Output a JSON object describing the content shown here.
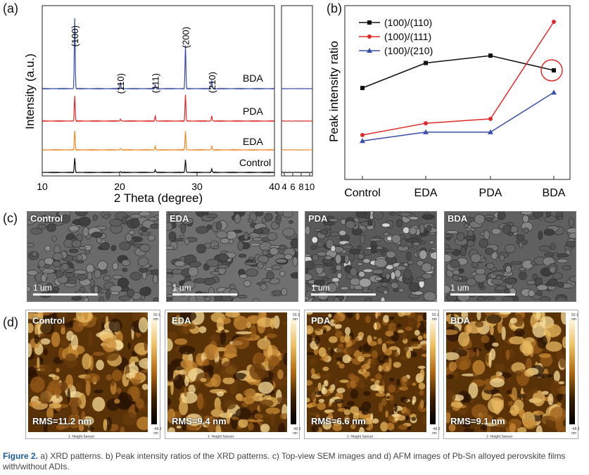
{
  "panel_labels": {
    "a": "(a)",
    "b": "(b)",
    "c": "(c)",
    "d": "(d)"
  },
  "chart_data": [
    {
      "type": "line",
      "xlabel": "2 Theta (degree)",
      "ylabel": "Intensity (a.u.)",
      "main_xticks": [
        "10",
        "20",
        "30",
        "40"
      ],
      "inset_xticks": [
        "4",
        "6",
        "8",
        "10"
      ],
      "peak_labels": [
        "(100)",
        "(110)",
        "(111)",
        "(200)",
        "(210)"
      ],
      "peak_positions": [
        14.2,
        20.1,
        24.6,
        28.5,
        31.9
      ],
      "series": [
        {
          "name": "BDA",
          "color": "#3a4fa8",
          "heights": [
            1.0,
            0.09,
            0.06,
            0.62,
            0.12
          ]
        },
        {
          "name": "PDA",
          "color": "#e02a2a",
          "heights": [
            0.4,
            0.03,
            0.08,
            0.42,
            0.08
          ]
        },
        {
          "name": "EDA",
          "color": "#f08a2a",
          "heights": [
            0.4,
            0.03,
            0.07,
            0.38,
            0.08
          ]
        },
        {
          "name": "Control",
          "color": "#111111",
          "heights": [
            0.35,
            0.02,
            0.06,
            0.3,
            0.08
          ]
        }
      ]
    },
    {
      "type": "line",
      "ylabel": "Peak intensity ratio",
      "categories": [
        "Control",
        "EDA",
        "PDA",
        "BDA"
      ],
      "series": [
        {
          "name": "(100)/(110)",
          "color": "#111111",
          "marker": "square",
          "values": [
            0.55,
            0.72,
            0.77,
            0.67
          ]
        },
        {
          "name": "(100)/(111)",
          "color": "#e02a2a",
          "marker": "circle",
          "values": [
            0.23,
            0.31,
            0.34,
            1.0
          ]
        },
        {
          "name": "(100)/(210)",
          "color": "#3a4fa8",
          "marker": "triangle",
          "values": [
            0.19,
            0.25,
            0.25,
            0.52
          ]
        }
      ],
      "highlight": "BDA (100)/(110)"
    }
  ],
  "sem": [
    {
      "label": "Control",
      "scale": "1 um",
      "tone": "#6a6a6a"
    },
    {
      "label": "EDA",
      "scale": "1 um",
      "tone": "#707070"
    },
    {
      "label": "PDA",
      "scale": "1 um",
      "tone": "#5a5a5a"
    },
    {
      "label": "BDA",
      "scale": "1 um",
      "tone": "#606060"
    }
  ],
  "afm": [
    {
      "label": "Control",
      "rms": "RMS=11.2 nm"
    },
    {
      "label": "EDA",
      "rms": "RMS=9.4 nm"
    },
    {
      "label": "PDA",
      "rms": "RMS=6.6 nm"
    },
    {
      "label": "BDA",
      "rms": "RMS=9.1 nm"
    }
  ],
  "afm_colorbar": {
    "top": "50.1 nm",
    "bottom": "-48.3 nm",
    "sensor": "1: Height Sensor"
  },
  "caption": {
    "fig": "Figure 2.",
    "text": " a) XRD patterns. b) Peak intensity ratios of the XRD patterns. c) Top-view SEM images and d) AFM images of Pb-Sn alloyed perovskite films with/without ADIs."
  }
}
